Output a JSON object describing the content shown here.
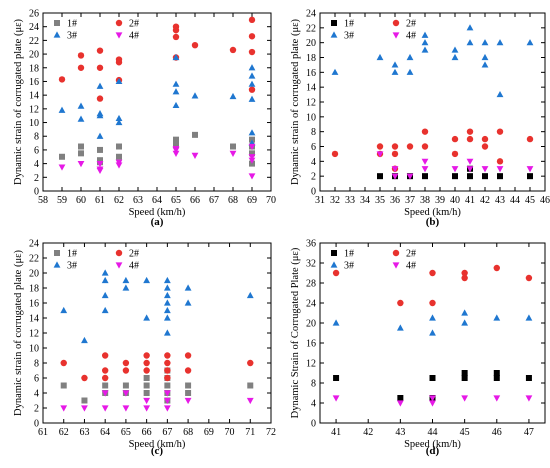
{
  "colors": {
    "1#": "#000000",
    "2#": "#e8322e",
    "3#": "#1f77d0",
    "4#": "#e619e6",
    "1#_alt": "#808080"
  },
  "chart_data": [
    {
      "panel": "(a)",
      "type": "scatter",
      "xlabel": "Speed (km/h)",
      "ylabel": "Dynamic strain of corrugated plate (με)",
      "xlim": [
        58,
        70
      ],
      "ylim": [
        0,
        26
      ],
      "xticks": [
        "58",
        "59",
        "60",
        "61",
        "62",
        "63",
        "64",
        "65",
        "66",
        "67",
        "68",
        "69",
        "70"
      ],
      "yticks": [
        "0",
        "2",
        "4",
        "6",
        "8",
        "10",
        "12",
        "14",
        "16",
        "18",
        "20",
        "22",
        "24",
        "26"
      ],
      "legend_position": "top-left",
      "series": [
        {
          "name": "1#",
          "marker": "square",
          "color": "#808080",
          "points": [
            [
              59,
              5
            ],
            [
              60,
              5.5
            ],
            [
              60,
              6.5
            ],
            [
              61,
              4.2
            ],
            [
              61,
              4.5
            ],
            [
              61,
              6
            ],
            [
              62,
              5
            ],
            [
              62,
              6.5
            ],
            [
              65,
              6.8
            ],
            [
              65,
              7.5
            ],
            [
              66,
              8.2
            ],
            [
              68,
              6.5
            ],
            [
              69,
              4
            ],
            [
              69,
              5.5
            ],
            [
              69,
              6.5
            ],
            [
              69,
              7.5
            ]
          ]
        },
        {
          "name": "2#",
          "marker": "circle",
          "color": "#e8322e",
          "points": [
            [
              59,
              16.3
            ],
            [
              60,
              18
            ],
            [
              60,
              19.8
            ],
            [
              61,
              13.5
            ],
            [
              61,
              18
            ],
            [
              61,
              20.5
            ],
            [
              62,
              16.2
            ],
            [
              62,
              18.8
            ],
            [
              62,
              19.2
            ],
            [
              65,
              19.5
            ],
            [
              65,
              22.5
            ],
            [
              65,
              23.5
            ],
            [
              65,
              24
            ],
            [
              66,
              21.3
            ],
            [
              68,
              20.6
            ],
            [
              69,
              14.8
            ],
            [
              69,
              20.3
            ],
            [
              69,
              22.6
            ],
            [
              69,
              25
            ]
          ]
        },
        {
          "name": "3#",
          "marker": "triangle-up",
          "color": "#1f77d0",
          "points": [
            [
              59,
              11.8
            ],
            [
              60,
              10.5
            ],
            [
              60,
              12.4
            ],
            [
              61,
              8
            ],
            [
              61,
              11
            ],
            [
              61,
              11.3
            ],
            [
              61,
              15.3
            ],
            [
              62,
              10
            ],
            [
              62,
              10.6
            ],
            [
              62,
              16
            ],
            [
              65,
              12.5
            ],
            [
              65,
              14.5
            ],
            [
              65,
              15.6
            ],
            [
              65,
              19.5
            ],
            [
              66,
              13.9
            ],
            [
              68,
              13.8
            ],
            [
              69,
              7
            ],
            [
              69,
              8.5
            ],
            [
              69,
              13.4
            ],
            [
              69,
              15.6
            ],
            [
              69,
              16.8
            ],
            [
              69,
              18
            ]
          ]
        },
        {
          "name": "4#",
          "marker": "triangle-down",
          "color": "#e619e6",
          "points": [
            [
              59,
              3.5
            ],
            [
              60,
              4
            ],
            [
              61,
              3
            ],
            [
              61,
              3.2
            ],
            [
              61,
              4
            ],
            [
              62,
              3.8
            ],
            [
              62,
              4.2
            ],
            [
              65,
              5.5
            ],
            [
              65,
              6
            ],
            [
              65,
              6.2
            ],
            [
              66,
              5.2
            ],
            [
              68,
              5.5
            ],
            [
              69,
              2.2
            ],
            [
              69,
              4.5
            ],
            [
              69,
              5
            ],
            [
              69,
              6.5
            ]
          ]
        }
      ]
    },
    {
      "panel": "(b)",
      "type": "scatter",
      "xlabel": "Speed (km/h)",
      "ylabel": "Dynamic strain of corrugated plate (με)",
      "xlim": [
        31,
        46
      ],
      "ylim": [
        0,
        24
      ],
      "xticks": [
        "31",
        "32",
        "33",
        "34",
        "35",
        "36",
        "37",
        "38",
        "39",
        "40",
        "41",
        "42",
        "43",
        "44",
        "45",
        "46"
      ],
      "yticks": [
        "0",
        "2",
        "4",
        "6",
        "8",
        "10",
        "12",
        "14",
        "16",
        "18",
        "20",
        "22",
        "24"
      ],
      "legend_position": "top-left",
      "series": [
        {
          "name": "1#",
          "marker": "square",
          "color": "#000000",
          "points": [
            [
              35,
              2
            ],
            [
              36,
              2
            ],
            [
              37,
              2
            ],
            [
              38,
              2
            ],
            [
              40,
              2
            ],
            [
              41,
              2
            ],
            [
              41,
              3
            ],
            [
              42,
              2
            ],
            [
              43,
              2
            ],
            [
              45,
              2
            ]
          ]
        },
        {
          "name": "2#",
          "marker": "circle",
          "color": "#e8322e",
          "points": [
            [
              32,
              5
            ],
            [
              35,
              5
            ],
            [
              35,
              6
            ],
            [
              36,
              3
            ],
            [
              36,
              5
            ],
            [
              36,
              6
            ],
            [
              37,
              6
            ],
            [
              38,
              6
            ],
            [
              38,
              8
            ],
            [
              40,
              5
            ],
            [
              40,
              7
            ],
            [
              41,
              7
            ],
            [
              41,
              8
            ],
            [
              42,
              6
            ],
            [
              42,
              7
            ],
            [
              43,
              4
            ],
            [
              43,
              8
            ],
            [
              45,
              7
            ]
          ]
        },
        {
          "name": "3#",
          "marker": "triangle-up",
          "color": "#1f77d0",
          "points": [
            [
              32,
              16
            ],
            [
              35,
              18
            ],
            [
              36,
              16
            ],
            [
              36,
              17
            ],
            [
              37,
              16
            ],
            [
              37,
              18
            ],
            [
              38,
              19
            ],
            [
              38,
              20
            ],
            [
              38,
              21
            ],
            [
              40,
              18
            ],
            [
              40,
              19
            ],
            [
              41,
              20
            ],
            [
              41,
              22
            ],
            [
              42,
              17
            ],
            [
              42,
              18
            ],
            [
              42,
              20
            ],
            [
              43,
              13
            ],
            [
              43,
              20
            ],
            [
              45,
              20
            ]
          ]
        },
        {
          "name": "4#",
          "marker": "triangle-down",
          "color": "#e619e6",
          "points": [
            [
              35,
              5
            ],
            [
              36,
              2
            ],
            [
              36,
              3
            ],
            [
              37,
              2
            ],
            [
              38,
              3
            ],
            [
              38,
              4
            ],
            [
              40,
              3
            ],
            [
              41,
              3
            ],
            [
              41,
              4
            ],
            [
              42,
              3
            ],
            [
              43,
              3
            ],
            [
              45,
              3
            ]
          ]
        }
      ]
    },
    {
      "panel": "(c)",
      "type": "scatter",
      "xlabel": "Speed (km/h)",
      "ylabel": "Dynamic strain of corrugated plate (με)",
      "xlim": [
        61,
        72
      ],
      "ylim": [
        0,
        24
      ],
      "xticks": [
        "61",
        "62",
        "63",
        "64",
        "65",
        "66",
        "67",
        "68",
        "69",
        "70",
        "71",
        "72"
      ],
      "yticks": [
        "0",
        "2",
        "4",
        "6",
        "8",
        "10",
        "12",
        "14",
        "16",
        "18",
        "20",
        "22",
        "24"
      ],
      "legend_position": "top-left",
      "series": [
        {
          "name": "1#",
          "marker": "square",
          "color": "#808080",
          "points": [
            [
              62,
              5
            ],
            [
              63,
              3
            ],
            [
              64,
              4
            ],
            [
              64,
              5
            ],
            [
              65,
              4
            ],
            [
              65,
              5
            ],
            [
              66,
              4
            ],
            [
              66,
              5
            ],
            [
              66,
              6
            ],
            [
              67,
              3
            ],
            [
              67,
              4
            ],
            [
              67,
              5
            ],
            [
              67,
              6
            ],
            [
              67,
              7
            ],
            [
              68,
              4
            ],
            [
              68,
              5
            ],
            [
              71,
              5
            ]
          ]
        },
        {
          "name": "2#",
          "marker": "circle",
          "color": "#e8322e",
          "points": [
            [
              62,
              8
            ],
            [
              63,
              6
            ],
            [
              64,
              6
            ],
            [
              64,
              7
            ],
            [
              64,
              9
            ],
            [
              65,
              7
            ],
            [
              65,
              8
            ],
            [
              66,
              7
            ],
            [
              66,
              8
            ],
            [
              66,
              9
            ],
            [
              67,
              6
            ],
            [
              67,
              7
            ],
            [
              67,
              8
            ],
            [
              67,
              9
            ],
            [
              68,
              7
            ],
            [
              68,
              9
            ],
            [
              71,
              8
            ]
          ]
        },
        {
          "name": "3#",
          "marker": "triangle-up",
          "color": "#1f77d0",
          "points": [
            [
              62,
              15
            ],
            [
              63,
              11
            ],
            [
              64,
              15
            ],
            [
              64,
              17
            ],
            [
              64,
              19
            ],
            [
              64,
              20
            ],
            [
              65,
              18
            ],
            [
              65,
              19
            ],
            [
              66,
              14
            ],
            [
              66,
              19
            ],
            [
              67,
              12
            ],
            [
              67,
              14
            ],
            [
              67,
              15
            ],
            [
              67,
              16
            ],
            [
              67,
              17
            ],
            [
              67,
              18
            ],
            [
              67,
              19
            ],
            [
              68,
              16
            ],
            [
              68,
              18
            ],
            [
              71,
              17
            ]
          ]
        },
        {
          "name": "4#",
          "marker": "triangle-down",
          "color": "#e619e6",
          "points": [
            [
              62,
              2
            ],
            [
              63,
              2
            ],
            [
              64,
              2
            ],
            [
              64,
              4
            ],
            [
              65,
              2
            ],
            [
              65,
              4
            ],
            [
              66,
              2
            ],
            [
              66,
              3
            ],
            [
              67,
              2
            ],
            [
              67,
              3
            ],
            [
              67,
              4
            ],
            [
              68,
              3
            ],
            [
              71,
              3
            ]
          ]
        }
      ]
    },
    {
      "panel": "(d)",
      "type": "scatter",
      "xlabel": "Speed (km/h)",
      "ylabel": "Dynamic Strain of Corrugated Plate (με)",
      "xlim": [
        40.5,
        47.5
      ],
      "ylim": [
        0,
        36
      ],
      "xticks": [
        "41",
        "42",
        "43",
        "44",
        "45",
        "46",
        "47"
      ],
      "yticks": [
        "0",
        "4",
        "8",
        "12",
        "16",
        "20",
        "24",
        "28",
        "32",
        "36"
      ],
      "legend_position": "top-left",
      "series": [
        {
          "name": "1#",
          "marker": "square",
          "color": "#000000",
          "points": [
            [
              41,
              9
            ],
            [
              43,
              5
            ],
            [
              44,
              5
            ],
            [
              44,
              9
            ],
            [
              45,
              9
            ],
            [
              45,
              10
            ],
            [
              46,
              9
            ],
            [
              46,
              10
            ],
            [
              47,
              9
            ]
          ]
        },
        {
          "name": "2#",
          "marker": "circle",
          "color": "#e8322e",
          "points": [
            [
              41,
              30
            ],
            [
              43,
              24
            ],
            [
              44,
              24
            ],
            [
              44,
              30
            ],
            [
              45,
              29
            ],
            [
              45,
              30
            ],
            [
              46,
              31
            ],
            [
              47,
              29
            ]
          ]
        },
        {
          "name": "3#",
          "marker": "triangle-up",
          "color": "#1f77d0",
          "points": [
            [
              41,
              20
            ],
            [
              43,
              19
            ],
            [
              44,
              18
            ],
            [
              44,
              21
            ],
            [
              45,
              20
            ],
            [
              45,
              22
            ],
            [
              46,
              21
            ],
            [
              47,
              21
            ]
          ]
        },
        {
          "name": "4#",
          "marker": "triangle-down",
          "color": "#e619e6",
          "points": [
            [
              41,
              5
            ],
            [
              43,
              4
            ],
            [
              44,
              4
            ],
            [
              44,
              5
            ],
            [
              45,
              5
            ],
            [
              46,
              5
            ],
            [
              47,
              5
            ]
          ]
        }
      ]
    }
  ]
}
